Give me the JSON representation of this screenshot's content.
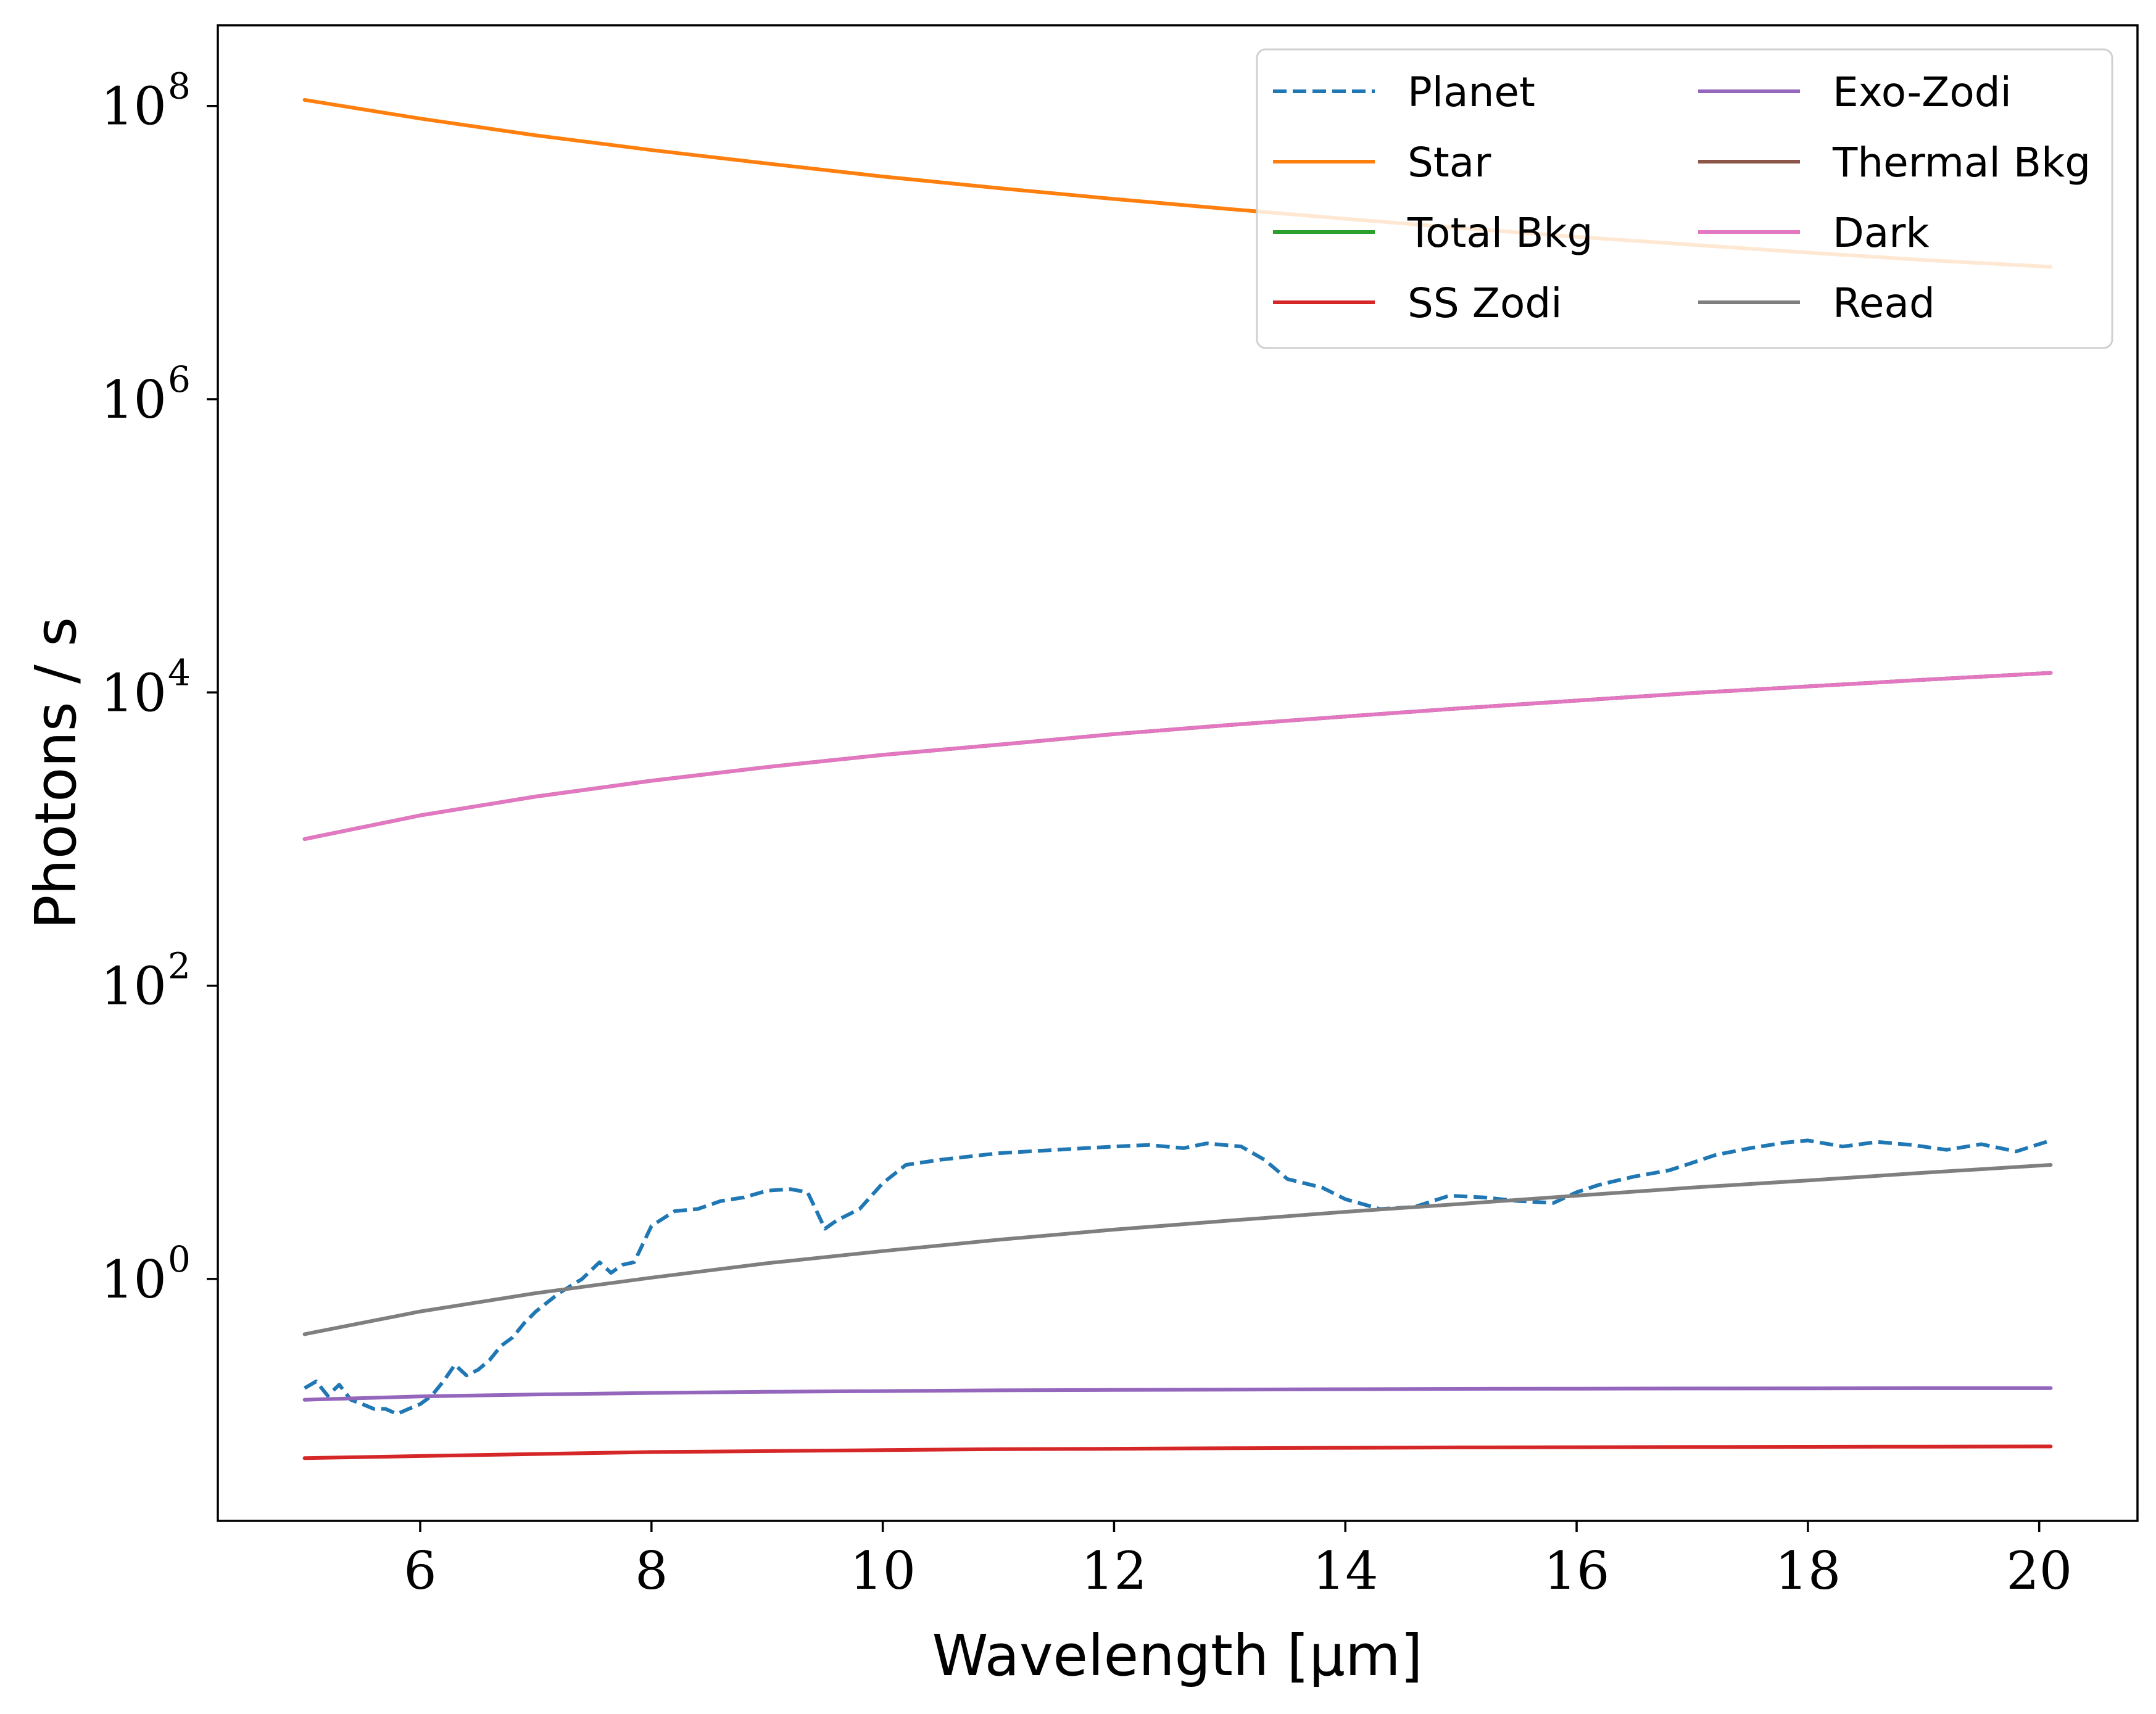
{
  "chart_data": {
    "type": "line",
    "xlabel": "Wavelength [μm]",
    "ylabel": "Photons / s",
    "xlim": [
      4.25,
      20.85
    ],
    "ylim_log10": [
      -1.65,
      8.55
    ],
    "yscale": "log",
    "x_ticks": [
      6,
      8,
      10,
      12,
      14,
      16,
      18,
      20
    ],
    "y_ticks": [
      {
        "base": "10",
        "exp": "0",
        "log10": 0
      },
      {
        "base": "10",
        "exp": "2",
        "log10": 2
      },
      {
        "base": "10",
        "exp": "4",
        "log10": 4
      },
      {
        "base": "10",
        "exp": "6",
        "log10": 6
      },
      {
        "base": "10",
        "exp": "8",
        "log10": 8
      }
    ],
    "legend_position": "top-right",
    "legend_columns": 2,
    "series": [
      {
        "name": "Planet",
        "color": "#1f77b4",
        "dash": true,
        "x": [
          5.0,
          5.1,
          5.2,
          5.3,
          5.4,
          5.5,
          5.6,
          5.7,
          5.8,
          5.9,
          6.0,
          6.1,
          6.2,
          6.3,
          6.4,
          6.5,
          6.6,
          6.7,
          6.8,
          6.9,
          7.0,
          7.2,
          7.4,
          7.55,
          7.65,
          7.75,
          7.85,
          8.0,
          8.2,
          8.4,
          8.6,
          8.8,
          9.0,
          9.2,
          9.35,
          9.5,
          9.6,
          9.8,
          10.0,
          10.2,
          10.5,
          11.0,
          11.5,
          12.0,
          12.3,
          12.6,
          12.8,
          13.1,
          13.3,
          13.5,
          13.8,
          14.0,
          14.3,
          14.6,
          14.9,
          15.2,
          15.5,
          15.8,
          16.0,
          16.2,
          16.5,
          16.8,
          17.0,
          17.2,
          17.5,
          17.8,
          18.0,
          18.3,
          18.6,
          18.9,
          19.2,
          19.5,
          19.8,
          20.1
        ],
        "y": [
          0.18,
          0.2,
          0.16,
          0.19,
          0.15,
          0.14,
          0.13,
          0.13,
          0.12,
          0.13,
          0.14,
          0.16,
          0.2,
          0.26,
          0.22,
          0.24,
          0.28,
          0.35,
          0.4,
          0.5,
          0.6,
          0.8,
          1.0,
          1.3,
          1.1,
          1.25,
          1.3,
          2.3,
          2.9,
          3.0,
          3.4,
          3.6,
          4.0,
          4.1,
          3.9,
          2.2,
          2.5,
          3.0,
          4.5,
          6.0,
          6.5,
          7.2,
          7.6,
          8.0,
          8.2,
          7.8,
          8.4,
          8.0,
          6.5,
          4.8,
          4.2,
          3.5,
          3.0,
          3.1,
          3.7,
          3.6,
          3.4,
          3.3,
          3.9,
          4.4,
          5.0,
          5.5,
          6.2,
          7.0,
          7.8,
          8.5,
          8.8,
          8.0,
          8.6,
          8.2,
          7.6,
          8.3,
          7.4,
          8.8
        ]
      },
      {
        "name": "Star",
        "color": "#ff7f0e",
        "dash": false,
        "x": [
          5,
          6,
          7,
          8,
          9,
          10,
          11,
          12,
          13,
          14,
          15,
          16,
          17,
          18,
          19,
          20.1
        ],
        "y": [
          110000000,
          82000000,
          63000000,
          50000000,
          40500000,
          33000000,
          27500000,
          23200000,
          19800000,
          17000000,
          14700000,
          12800000,
          11300000,
          10000000,
          8900000,
          8000000
        ]
      },
      {
        "name": "Total Bkg",
        "color": "#2ca02c",
        "dash": false,
        "x": [
          5,
          6,
          7,
          8,
          9,
          10,
          11,
          12,
          13,
          14,
          15,
          16,
          17,
          18,
          19,
          20.1
        ],
        "y": [
          1000,
          1450,
          1950,
          2500,
          3100,
          3750,
          4400,
          5200,
          6000,
          6850,
          7800,
          8800,
          9900,
          11000,
          12200,
          13600
        ]
      },
      {
        "name": "SS Zodi",
        "color": "#d62728",
        "dash": false,
        "x": [
          5,
          6,
          7,
          8,
          9,
          10,
          11,
          12,
          13,
          14,
          15,
          16,
          17,
          18,
          19,
          20.1
        ],
        "y": [
          0.06,
          0.062,
          0.064,
          0.066,
          0.067,
          0.068,
          0.069,
          0.0695,
          0.07,
          0.0705,
          0.071,
          0.0712,
          0.0714,
          0.0716,
          0.0718,
          0.072
        ]
      },
      {
        "name": "Exo-Zodi",
        "color": "#9467bd",
        "dash": false,
        "x": [
          5,
          6,
          7,
          8,
          9,
          10,
          11,
          12,
          13,
          14,
          15,
          16,
          17,
          18,
          19,
          20.1
        ],
        "y": [
          0.15,
          0.158,
          0.163,
          0.167,
          0.17,
          0.172,
          0.174,
          0.175,
          0.176,
          0.177,
          0.178,
          0.1785,
          0.179,
          0.1795,
          0.18,
          0.18
        ]
      },
      {
        "name": "Thermal Bkg",
        "color": "#8c564b",
        "dash": false,
        "x": [
          5,
          6,
          7,
          8,
          9,
          10,
          11,
          12,
          13,
          14,
          15,
          16,
          17,
          18,
          19,
          20.1
        ],
        "y": [
          1000,
          1450,
          1950,
          2500,
          3100,
          3750,
          4400,
          5200,
          6000,
          6850,
          7800,
          8800,
          9900,
          11000,
          12200,
          13600
        ]
      },
      {
        "name": "Dark",
        "color": "#e377c2",
        "dash": false,
        "x": [
          5,
          6,
          7,
          8,
          9,
          10,
          11,
          12,
          13,
          14,
          15,
          16,
          17,
          18,
          19,
          20.1
        ],
        "y": [
          1000,
          1450,
          1950,
          2500,
          3100,
          3750,
          4400,
          5200,
          6000,
          6850,
          7800,
          8800,
          9900,
          11000,
          12200,
          13600
        ]
      },
      {
        "name": "Read",
        "color": "#7f7f7f",
        "dash": false,
        "x": [
          5,
          6,
          7,
          8,
          9,
          10,
          11,
          12,
          13,
          14,
          15,
          16,
          17,
          18,
          19,
          20.1
        ],
        "y": [
          0.42,
          0.6,
          0.8,
          1.02,
          1.28,
          1.55,
          1.85,
          2.17,
          2.5,
          2.87,
          3.25,
          3.7,
          4.2,
          4.7,
          5.3,
          6.0
        ]
      }
    ]
  }
}
